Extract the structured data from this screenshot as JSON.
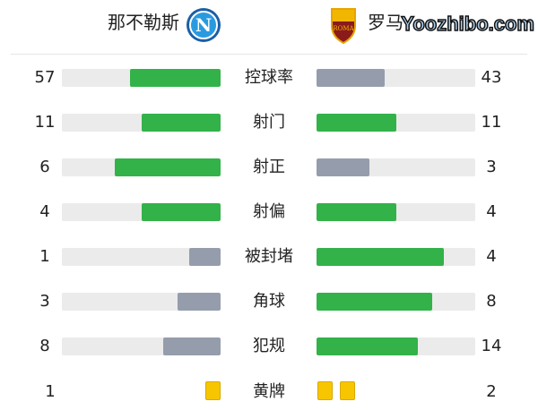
{
  "home": {
    "name": "那不勒斯",
    "logo_text": "N",
    "logo_color": "#1f8fd6"
  },
  "away": {
    "name": "罗马",
    "logo_text": "ROMA",
    "logo_color": "#8b1a1a"
  },
  "colors": {
    "higher": "#33b24a",
    "lower": "#959dac",
    "track": "#ebebeb",
    "card": "#f7c600"
  },
  "stats": [
    {
      "label": "控球率",
      "home": "57",
      "away": "43"
    },
    {
      "label": "射门",
      "home": "11",
      "away": "11"
    },
    {
      "label": "射正",
      "home": "6",
      "away": "3"
    },
    {
      "label": "射偏",
      "home": "4",
      "away": "4"
    },
    {
      "label": "被封堵",
      "home": "1",
      "away": "4"
    },
    {
      "label": "角球",
      "home": "3",
      "away": "8"
    },
    {
      "label": "犯规",
      "home": "8",
      "away": "14"
    }
  ],
  "yellow": {
    "label": "黄牌",
    "home": "1",
    "away": "2"
  },
  "watermark": "Yoozhibo.com"
}
